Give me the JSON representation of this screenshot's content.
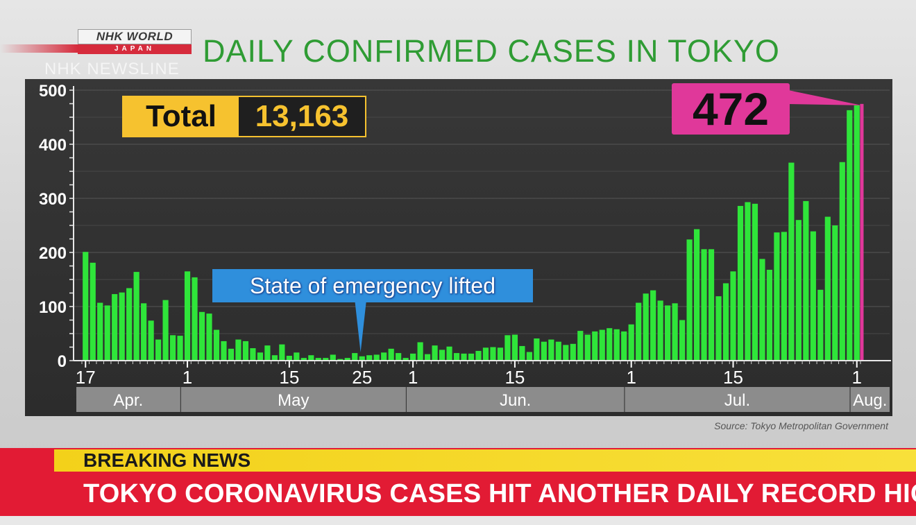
{
  "branding": {
    "logo_top": "NHK WORLD",
    "logo_bottom": "JAPAN",
    "program": "NHK NEWSLINE"
  },
  "chart_data": {
    "type": "bar",
    "title": "DAILY CONFIRMED CASES IN TOKYO",
    "total_label": "Total",
    "total_value": "13,163",
    "peak_label": "472",
    "peak_value": 472,
    "annotation": "State of emergency lifted",
    "annotation_date": "May 25",
    "source": "Source: Tokyo Metropolitan Government",
    "x_start": "Apr. 17",
    "x_end": "Aug. 1",
    "ylim": [
      0,
      500
    ],
    "yticks": [
      0,
      100,
      200,
      300,
      400,
      500
    ],
    "grid": true,
    "bar_color": "#2fe53a",
    "peak_color": "#e0389a",
    "x_tick_labels": [
      {
        "label": "17",
        "day_index": 0
      },
      {
        "label": "1",
        "day_index": 14
      },
      {
        "label": "15",
        "day_index": 28
      },
      {
        "label": "25",
        "day_index": 38
      },
      {
        "label": "1",
        "day_index": 45
      },
      {
        "label": "15",
        "day_index": 59
      },
      {
        "label": "1",
        "day_index": 75
      },
      {
        "label": "15",
        "day_index": 89
      },
      {
        "label": "1",
        "day_index": 106
      }
    ],
    "months": [
      {
        "label": "Apr.",
        "start_index": 0,
        "end_index": 13
      },
      {
        "label": "May",
        "start_index": 14,
        "end_index": 44
      },
      {
        "label": "Jun.",
        "start_index": 45,
        "end_index": 74
      },
      {
        "label": "Jul.",
        "start_index": 75,
        "end_index": 105
      },
      {
        "label": "Aug.",
        "start_index": 106,
        "end_index": 106
      }
    ],
    "values": [
      201,
      181,
      107,
      102,
      123,
      126,
      134,
      164,
      106,
      74,
      39,
      112,
      47,
      46,
      165,
      154,
      90,
      87,
      57,
      36,
      22,
      39,
      36,
      23,
      15,
      28,
      10,
      30,
      9,
      15,
      5,
      10,
      5,
      5,
      11,
      3,
      5,
      14,
      8,
      10,
      11,
      15,
      22,
      14,
      5,
      13,
      34,
      12,
      28,
      20,
      26,
      14,
      13,
      13,
      18,
      24,
      25,
      24,
      47,
      48,
      27,
      16,
      41,
      35,
      39,
      35,
      29,
      31,
      55,
      48,
      54,
      57,
      60,
      58,
      54,
      67,
      107,
      124,
      130,
      111,
      102,
      106,
      75,
      224,
      243,
      206,
      206,
      119,
      143,
      165,
      286,
      293,
      290,
      188,
      168,
      237,
      238,
      366,
      260,
      295,
      239,
      131,
      266,
      250,
      367,
      463,
      472
    ]
  },
  "breaking": {
    "label": "BREAKING NEWS",
    "text": "TOKYO CORONAVIRUS CASES HIT ANOTHER DAILY RECORD HIGH"
  }
}
